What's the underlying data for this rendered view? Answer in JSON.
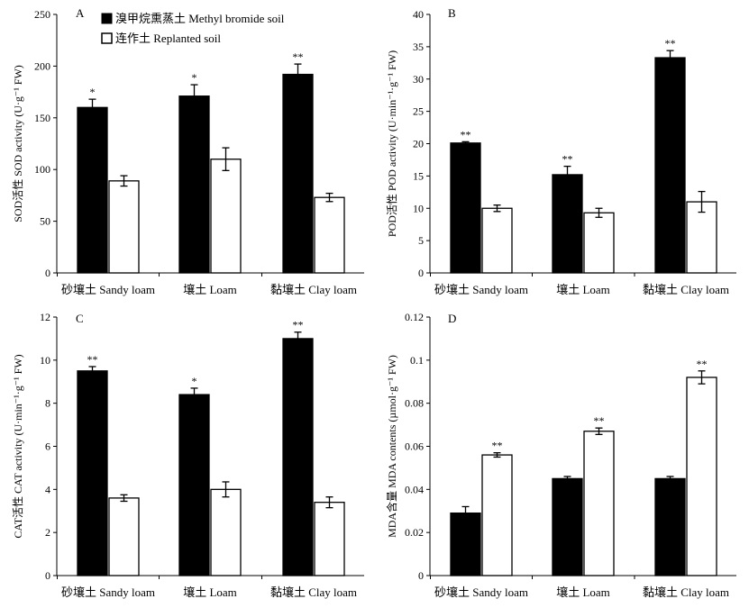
{
  "legend": [
    {
      "label": "溴甲烷熏蒸土 Methyl bromide soil",
      "color": "#000000"
    },
    {
      "label": "连作土 Replanted soil",
      "color": "#ffffff"
    }
  ],
  "chart_data": [
    {
      "type": "bar",
      "panel": "A",
      "categories": [
        "砂壤土 Sandy loam",
        "壤土 Loam",
        "黏壤土 Clay loam"
      ],
      "ylabel": "SOD活性 SOD activity (U·g⁻¹ FW)",
      "ylim": [
        0,
        250
      ],
      "yticks": [
        0,
        50,
        100,
        150,
        200,
        250
      ],
      "series": [
        {
          "name": "溴甲烷熏蒸土 Methyl bromide soil",
          "values": [
            160,
            171,
            192
          ],
          "errors": [
            8,
            11,
            10
          ]
        },
        {
          "name": "连作土 Replanted soil",
          "values": [
            89,
            110,
            73
          ],
          "errors": [
            5,
            11,
            4
          ]
        }
      ],
      "annotations": [
        "*",
        "*",
        "**"
      ]
    },
    {
      "type": "bar",
      "panel": "B",
      "categories": [
        "砂壤土 Sandy loam",
        "壤土 Loam",
        "黏壤土 Clay loam"
      ],
      "ylabel": "POD活性 POD activity (U·min⁻¹·g⁻¹ FW)",
      "ylim": [
        0,
        40
      ],
      "yticks": [
        0,
        5,
        10,
        15,
        20,
        25,
        30,
        35,
        40
      ],
      "series": [
        {
          "name": "溴甲烷熏蒸土 Methyl bromide soil",
          "values": [
            20.1,
            15.2,
            33.3
          ],
          "errors": [
            0.2,
            1.3,
            1.1
          ]
        },
        {
          "name": "连作土 Replanted soil",
          "values": [
            10.0,
            9.3,
            11.0
          ],
          "errors": [
            0.5,
            0.7,
            1.6
          ]
        }
      ],
      "annotations": [
        "**",
        "**",
        "**"
      ]
    },
    {
      "type": "bar",
      "panel": "C",
      "categories": [
        "砂壤土 Sandy loam",
        "壤土 Loam",
        "黏壤土 Clay loam"
      ],
      "ylabel": "CAT活性 CAT activity (U·min⁻¹·g⁻¹ FW)",
      "ylim": [
        0,
        12
      ],
      "yticks": [
        0,
        2,
        4,
        6,
        8,
        10,
        12
      ],
      "series": [
        {
          "name": "溴甲烷熏蒸土 Methyl bromide soil",
          "values": [
            9.5,
            8.4,
            11.0
          ],
          "errors": [
            0.2,
            0.3,
            0.3
          ]
        },
        {
          "name": "连作土 Replanted soil",
          "values": [
            3.6,
            4.0,
            3.4
          ],
          "errors": [
            0.15,
            0.35,
            0.25
          ]
        }
      ],
      "annotations": [
        "**",
        "*",
        "**"
      ]
    },
    {
      "type": "bar",
      "panel": "D",
      "categories": [
        "砂壤土 Sandy loam",
        "壤土 Loam",
        "黏壤土 Clay loam"
      ],
      "ylabel": "MDA含量 MDA contents (µmol·g⁻¹ FW)",
      "ylim": [
        0,
        0.12
      ],
      "yticks": [
        0,
        0.02,
        0.04,
        0.06,
        0.08,
        0.1,
        0.12
      ],
      "series": [
        {
          "name": "溴甲烷熏蒸土 Methyl bromide soil",
          "values": [
            0.029,
            0.045,
            0.045
          ],
          "errors": [
            0.003,
            0.001,
            0.001
          ]
        },
        {
          "name": "连作土 Replanted soil",
          "values": [
            0.056,
            0.067,
            0.092
          ],
          "errors": [
            0.001,
            0.0015,
            0.003
          ]
        }
      ],
      "annotations": [
        "**",
        "**",
        "**"
      ]
    }
  ]
}
